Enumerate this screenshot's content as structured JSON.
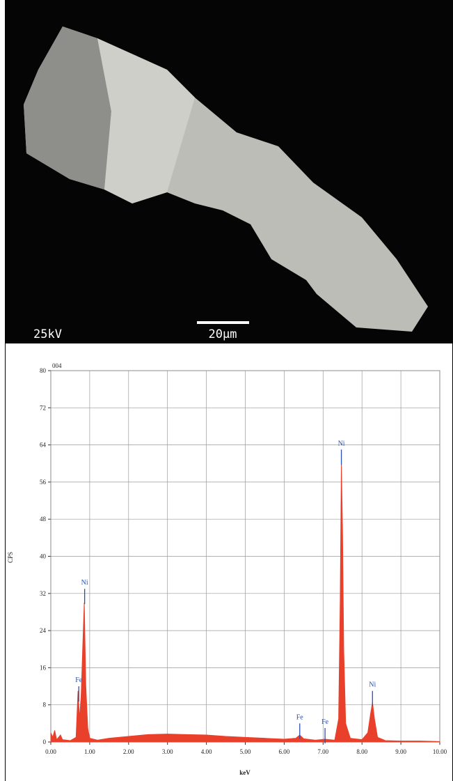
{
  "micrograph": {
    "voltage": "25kV",
    "scale": "20µm"
  },
  "chart_data": {
    "type": "area",
    "label": "004",
    "x_label": "keV",
    "y_label": "CPS",
    "color": "#e8402a",
    "grid": true,
    "xlim": [
      0,
      10
    ],
    "ylim": [
      0,
      80
    ],
    "xticks": [
      {
        "value": 0,
        "label": "0.00"
      },
      {
        "value": 1,
        "label": "1.00"
      },
      {
        "value": 2,
        "label": "2.00"
      },
      {
        "value": 3,
        "label": "3.00"
      },
      {
        "value": 4,
        "label": "4.00"
      },
      {
        "value": 5,
        "label": "5.00"
      },
      {
        "value": 6,
        "label": "6.00"
      },
      {
        "value": 7,
        "label": "7.00"
      },
      {
        "value": 8,
        "label": "8.00"
      },
      {
        "value": 9,
        "label": "9.00"
      },
      {
        "value": 10,
        "label": "10.00"
      }
    ],
    "yticks": [
      0,
      8,
      16,
      24,
      32,
      40,
      48,
      56,
      64,
      72,
      80
    ],
    "x": [
      0.0,
      0.05,
      0.1,
      0.15,
      0.25,
      0.3,
      0.5,
      0.65,
      0.7,
      0.74,
      0.78,
      0.82,
      0.86,
      0.9,
      0.95,
      1.0,
      1.2,
      1.5,
      2.0,
      2.5,
      3.0,
      3.5,
      4.0,
      4.5,
      5.0,
      5.5,
      6.0,
      6.3,
      6.4,
      6.5,
      6.8,
      7.05,
      7.3,
      7.4,
      7.44,
      7.47,
      7.5,
      7.53,
      7.58,
      7.7,
      8.0,
      8.15,
      8.22,
      8.27,
      8.32,
      8.4,
      8.6,
      9.0,
      9.5,
      10.0
    ],
    "values": [
      2,
      1,
      2.5,
      0.5,
      1.5,
      0.5,
      0.3,
      1,
      11,
      5,
      10,
      20,
      30,
      12,
      3,
      0.8,
      0.4,
      0.8,
      1.2,
      1.6,
      1.7,
      1.6,
      1.5,
      1.2,
      1.0,
      0.8,
      0.6,
      0.8,
      1.5,
      0.7,
      0.4,
      0.6,
      0.4,
      5,
      30,
      60,
      45,
      20,
      4,
      0.8,
      0.5,
      2,
      6,
      8.5,
      5,
      1,
      0.3,
      0.2,
      0.2,
      0.1
    ],
    "peaks": [
      {
        "label": "Fe",
        "x": 0.72,
        "y": 12
      },
      {
        "label": "Ni",
        "x": 0.87,
        "y": 33
      },
      {
        "label": "Fe",
        "x": 6.4,
        "y": 4
      },
      {
        "label": "Fe",
        "x": 7.05,
        "y": 3
      },
      {
        "label": "Ni",
        "x": 7.47,
        "y": 63
      },
      {
        "label": "Ni",
        "x": 8.27,
        "y": 11
      }
    ]
  }
}
